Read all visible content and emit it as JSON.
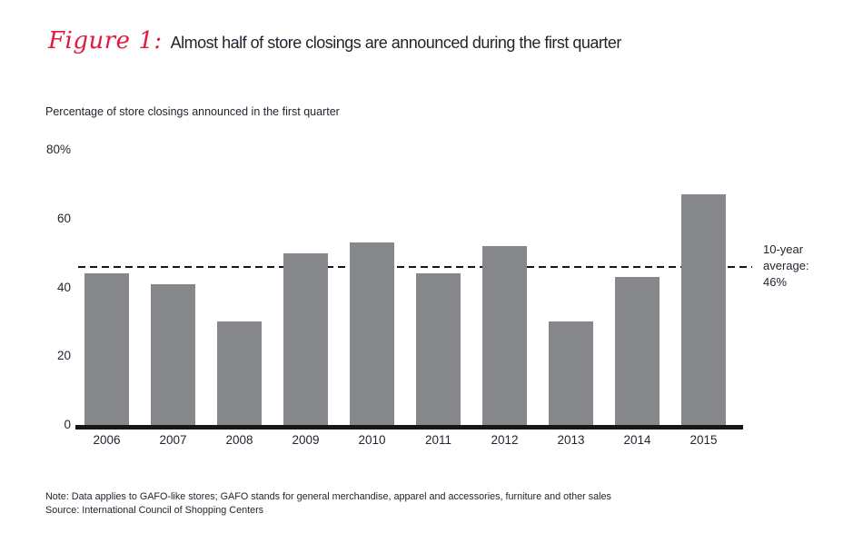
{
  "figure": {
    "label": "Figure 1:",
    "title": "Almost half of store closings are announced during the first quarter",
    "subtitle": "Percentage of store closings announced in the first quarter"
  },
  "chart_data": {
    "type": "bar",
    "title": "Almost half of store closings are announced during the first quarter",
    "categories": [
      "2006",
      "2007",
      "2008",
      "2009",
      "2010",
      "2011",
      "2012",
      "2013",
      "2014",
      "2015"
    ],
    "values": [
      44,
      41,
      30,
      50,
      53,
      44,
      52,
      30,
      43,
      67
    ],
    "xlabel": "",
    "ylabel": "Percentage of store closings announced in the first quarter",
    "ylim": [
      0,
      80
    ],
    "yticks": [
      {
        "value": 80,
        "label": "80%"
      },
      {
        "value": 60,
        "label": "60"
      },
      {
        "value": 40,
        "label": "40"
      },
      {
        "value": 20,
        "label": "20"
      },
      {
        "value": 0,
        "label": "0"
      }
    ],
    "grid": false,
    "legend": false,
    "bar_color": "#85878a",
    "reference_line": {
      "value": 46,
      "style": "dashed",
      "color": "#161616",
      "label_lines": [
        "10-year",
        "average:",
        "46%"
      ]
    }
  },
  "notes": {
    "note": "Note: Data applies to GAFO-like stores; GAFO stands for general merchandise, apparel and accessories, furniture and other sales",
    "source": "Source: International Council of Shopping Centers"
  },
  "colors": {
    "accent_red": "#e4193c",
    "text_dark": "#262330",
    "bar_gray": "#85878a",
    "axis_black": "#161616"
  }
}
